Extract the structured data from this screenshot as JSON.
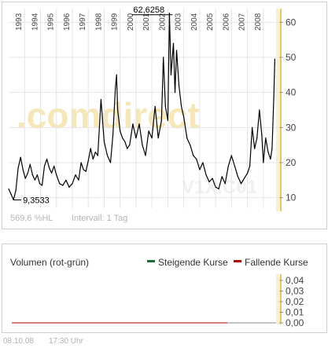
{
  "watermark": {
    "text": ".comdirect",
    "sub": "V1X.C01"
  },
  "top_info": {
    "pct": "569,6 %HL",
    "interval": "Intervall: 1 Tag"
  },
  "footer": {
    "date": "08.10.08",
    "time": "17:30 Uhr"
  },
  "volume": {
    "title": "Volumen (rot-grün)",
    "legend_up": "Steigende Kurse",
    "legend_down": "Fallende Kurse",
    "ticks": [
      "0,04",
      "0,03",
      "0,02",
      "0,01",
      "0,00"
    ],
    "tick_values": [
      0.04,
      0.03,
      0.02,
      0.01,
      0.0
    ],
    "up_color": "#1a6f3a",
    "down_color": "#b00000"
  },
  "colors": {
    "line": "#000000",
    "axis_band": "#f7efcf",
    "axis_line": "#e6c76e",
    "grid": "#e4e4e4",
    "watermark": "#f6e7b8"
  },
  "chart_data": {
    "type": "line",
    "title": "",
    "xlabel": "",
    "ylabel": "",
    "ylim": [
      7,
      63
    ],
    "xlim": [
      1992,
      2008.8
    ],
    "y_ticks": [
      10,
      20,
      30,
      40,
      50,
      60
    ],
    "y_tick_labels": [
      "10",
      "20",
      "30",
      "40",
      "50",
      "60"
    ],
    "x_ticks": [
      1993,
      1994,
      1995,
      1996,
      1997,
      1998,
      1999,
      2000,
      2001,
      2002,
      2003,
      2004,
      2005,
      2006,
      2007,
      2008
    ],
    "x_tick_labels": [
      "1993",
      "1994",
      "1995",
      "1996",
      "1997",
      "1998",
      "1999",
      "2000",
      "2001",
      "2002",
      "2003",
      "2004",
      "2005",
      "2006",
      "2007",
      "2008"
    ],
    "grid": true,
    "annotations": [
      {
        "label": "9,3533",
        "x": 1992.3,
        "y": 9.35
      },
      {
        "label": "62,6258",
        "x": 2002.1,
        "y": 62.6
      }
    ],
    "series": [
      {
        "values": [
          [
            1992.0,
            12.5
          ],
          [
            1992.15,
            11.0
          ],
          [
            1992.3,
            9.4
          ],
          [
            1992.45,
            12.0
          ],
          [
            1992.6,
            18.5
          ],
          [
            1992.75,
            21.5
          ],
          [
            1992.9,
            18.0
          ],
          [
            1993.05,
            15.5
          ],
          [
            1993.2,
            17.0
          ],
          [
            1993.35,
            19.5
          ],
          [
            1993.5,
            16.5
          ],
          [
            1993.65,
            15.0
          ],
          [
            1993.8,
            16.5
          ],
          [
            1993.95,
            14.0
          ],
          [
            1994.1,
            13.5
          ],
          [
            1994.25,
            19.0
          ],
          [
            1994.4,
            21.0
          ],
          [
            1994.55,
            18.5
          ],
          [
            1994.7,
            17.0
          ],
          [
            1994.85,
            19.0
          ],
          [
            1995.0,
            16.5
          ],
          [
            1995.2,
            14.0
          ],
          [
            1995.4,
            13.5
          ],
          [
            1995.6,
            15.0
          ],
          [
            1995.8,
            13.0
          ],
          [
            1996.0,
            14.0
          ],
          [
            1996.2,
            16.5
          ],
          [
            1996.4,
            15.0
          ],
          [
            1996.55,
            20.0
          ],
          [
            1996.7,
            18.0
          ],
          [
            1996.85,
            17.5
          ],
          [
            1997.0,
            20.5
          ],
          [
            1997.15,
            24.0
          ],
          [
            1997.3,
            21.0
          ],
          [
            1997.45,
            23.0
          ],
          [
            1997.6,
            22.0
          ],
          [
            1997.8,
            38.0
          ],
          [
            1997.9,
            32.0
          ],
          [
            1998.0,
            26.0
          ],
          [
            1998.2,
            22.0
          ],
          [
            1998.4,
            20.0
          ],
          [
            1998.55,
            28.0
          ],
          [
            1998.7,
            41.0
          ],
          [
            1998.78,
            45.0
          ],
          [
            1998.85,
            35.0
          ],
          [
            1999.0,
            29.0
          ],
          [
            1999.15,
            27.0
          ],
          [
            1999.3,
            26.0
          ],
          [
            1999.45,
            24.0
          ],
          [
            1999.6,
            25.0
          ],
          [
            1999.8,
            31.0
          ],
          [
            2000.0,
            27.0
          ],
          [
            2000.2,
            31.0
          ],
          [
            2000.4,
            25.0
          ],
          [
            2000.6,
            22.0
          ],
          [
            2000.8,
            29.0
          ],
          [
            2001.0,
            27.0
          ],
          [
            2001.2,
            36.0
          ],
          [
            2001.4,
            27.0
          ],
          [
            2001.6,
            32.0
          ],
          [
            2001.72,
            50.0
          ],
          [
            2001.85,
            36.0
          ],
          [
            2002.0,
            32.0
          ],
          [
            2002.1,
            62.6
          ],
          [
            2002.2,
            45.0
          ],
          [
            2002.35,
            54.0
          ],
          [
            2002.45,
            40.0
          ],
          [
            2002.55,
            52.0
          ],
          [
            2002.7,
            42.0
          ],
          [
            2002.85,
            36.0
          ],
          [
            2003.0,
            33.0
          ],
          [
            2003.2,
            27.0
          ],
          [
            2003.4,
            25.0
          ],
          [
            2003.6,
            22.0
          ],
          [
            2003.8,
            21.0
          ],
          [
            2004.0,
            18.0
          ],
          [
            2004.2,
            20.0
          ],
          [
            2004.4,
            16.5
          ],
          [
            2004.6,
            14.5
          ],
          [
            2004.8,
            15.5
          ],
          [
            2005.0,
            13.0
          ],
          [
            2005.2,
            12.5
          ],
          [
            2005.4,
            16.0
          ],
          [
            2005.6,
            14.0
          ],
          [
            2005.8,
            19.0
          ],
          [
            2006.0,
            22.0
          ],
          [
            2006.2,
            19.0
          ],
          [
            2006.4,
            16.0
          ],
          [
            2006.6,
            14.0
          ],
          [
            2006.8,
            15.5
          ],
          [
            2007.0,
            17.0
          ],
          [
            2007.15,
            19.0
          ],
          [
            2007.3,
            30.0
          ],
          [
            2007.45,
            24.0
          ],
          [
            2007.6,
            27.0
          ],
          [
            2007.75,
            35.0
          ],
          [
            2007.9,
            28.0
          ],
          [
            2008.0,
            20.0
          ],
          [
            2008.15,
            27.0
          ],
          [
            2008.3,
            23.0
          ],
          [
            2008.45,
            21.0
          ],
          [
            2008.55,
            24.0
          ],
          [
            2008.65,
            38.0
          ],
          [
            2008.72,
            49.5
          ]
        ]
      }
    ]
  }
}
